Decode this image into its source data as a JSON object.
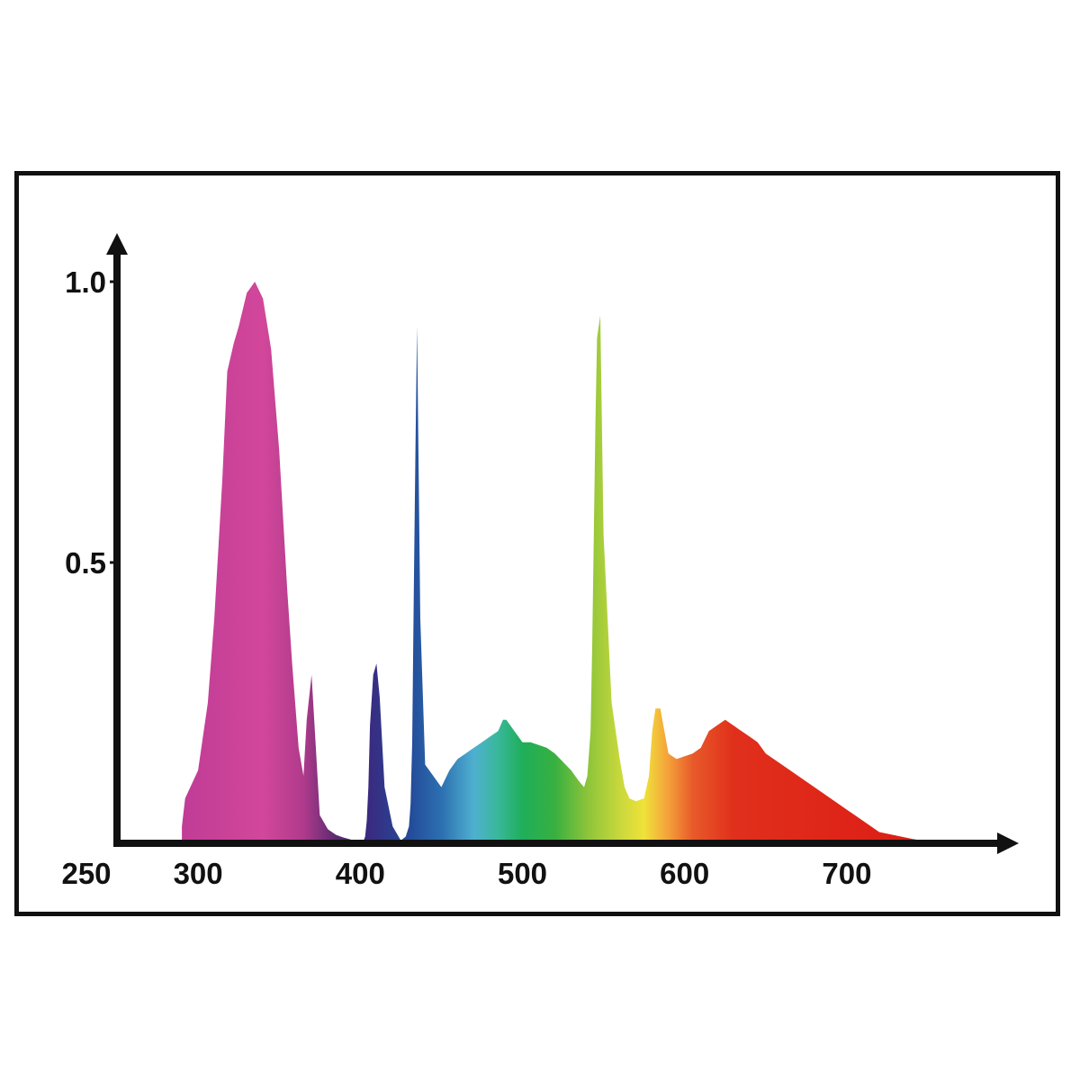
{
  "chart_data": {
    "type": "area",
    "title": "",
    "xlabel": "",
    "ylabel": "",
    "x_ticks": [
      "250",
      "300",
      "400",
      "500",
      "600",
      "700"
    ],
    "x_tick_values": [
      250,
      300,
      400,
      500,
      600,
      700
    ],
    "y_ticks": [
      "0.5",
      "1.0"
    ],
    "y_tick_values": [
      0.5,
      1.0
    ],
    "xlim": [
      250,
      800
    ],
    "ylim": [
      0,
      1.0
    ],
    "grid": false,
    "fill": "visible-spectrum gradient by wavelength",
    "series": [
      {
        "x": [
          290,
          292,
          300,
          306,
          310,
          315,
          318,
          322,
          325,
          330,
          335,
          340,
          345,
          350,
          355,
          358,
          362,
          365,
          367,
          370,
          375,
          380,
          385,
          390,
          395,
          398,
          400,
          402,
          403,
          404,
          405,
          406,
          408,
          410,
          412,
          415,
          420,
          425,
          428,
          430,
          431,
          432,
          433,
          434,
          435,
          437,
          440,
          445,
          450,
          455,
          460,
          465,
          470,
          475,
          480,
          485,
          488,
          490,
          495,
          500,
          505,
          510,
          515,
          520,
          525,
          530,
          535,
          538,
          540,
          542,
          543,
          544,
          545,
          546,
          548,
          550,
          555,
          560,
          563,
          566,
          570,
          575,
          578,
          580,
          582,
          585,
          590,
          595,
          600,
          605,
          610,
          615,
          620,
          625,
          630,
          635,
          640,
          645,
          650,
          660,
          670,
          680,
          690,
          700,
          710,
          720,
          730,
          740,
          750,
          755
        ],
        "y": [
          0.03,
          0.08,
          0.13,
          0.25,
          0.4,
          0.65,
          0.84,
          0.89,
          0.92,
          0.98,
          1.0,
          0.97,
          0.88,
          0.7,
          0.45,
          0.32,
          0.17,
          0.12,
          0.22,
          0.3,
          0.05,
          0.025,
          0.015,
          0.01,
          0.006,
          0.004,
          0.002,
          0.004,
          0.012,
          0.04,
          0.1,
          0.21,
          0.3,
          0.32,
          0.26,
          0.1,
          0.03,
          0.005,
          0.012,
          0.03,
          0.07,
          0.18,
          0.45,
          0.7,
          0.92,
          0.4,
          0.14,
          0.12,
          0.1,
          0.13,
          0.15,
          0.16,
          0.17,
          0.18,
          0.19,
          0.2,
          0.22,
          0.22,
          0.2,
          0.18,
          0.18,
          0.175,
          0.17,
          0.16,
          0.145,
          0.13,
          0.11,
          0.1,
          0.12,
          0.2,
          0.35,
          0.55,
          0.75,
          0.9,
          0.94,
          0.55,
          0.25,
          0.15,
          0.1,
          0.08,
          0.075,
          0.08,
          0.12,
          0.2,
          0.24,
          0.24,
          0.16,
          0.15,
          0.155,
          0.16,
          0.17,
          0.2,
          0.21,
          0.22,
          0.21,
          0.2,
          0.19,
          0.18,
          0.16,
          0.14,
          0.12,
          0.1,
          0.08,
          0.06,
          0.04,
          0.02,
          0.014,
          0.008,
          0.003,
          0.0
        ]
      }
    ]
  }
}
